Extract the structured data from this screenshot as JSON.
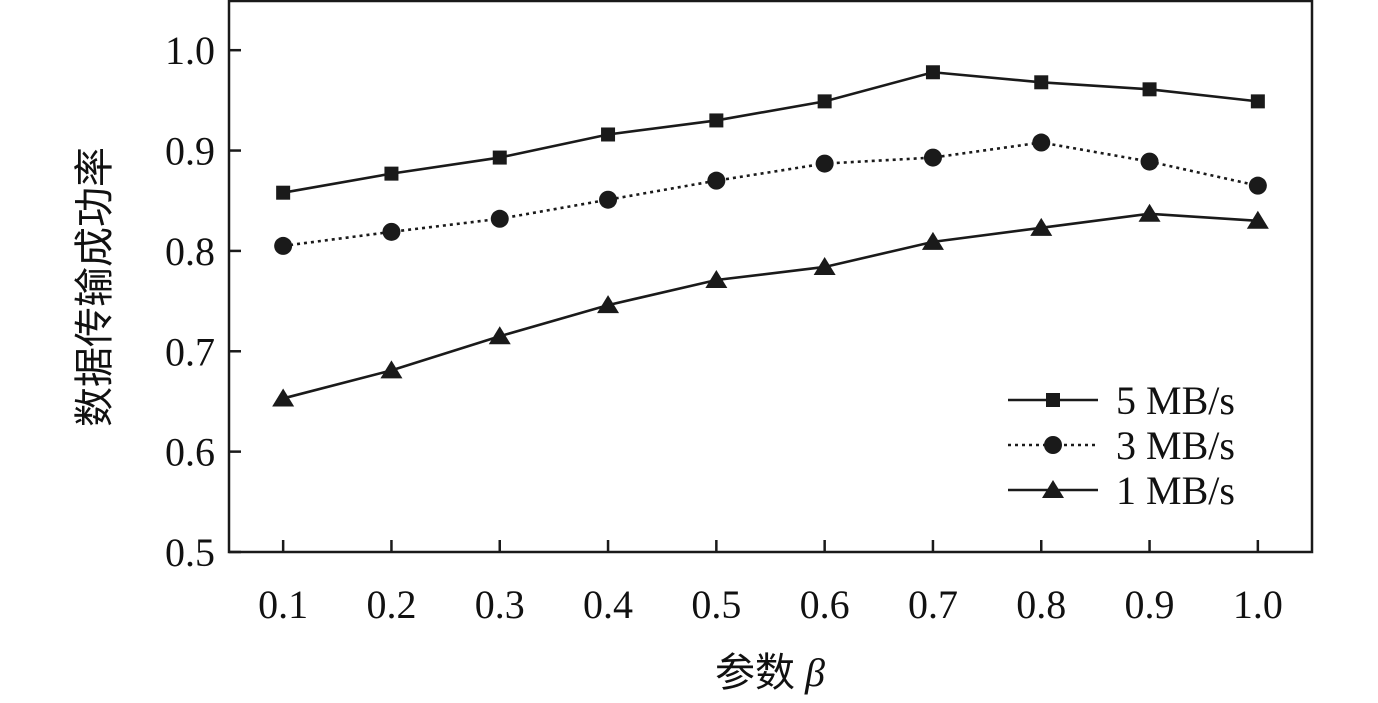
{
  "chart_data": {
    "type": "line",
    "xlabel": "参数",
    "xlabel_symbol": "β",
    "ylabel": "数据传输成功率",
    "x": [
      0.1,
      0.2,
      0.3,
      0.4,
      0.5,
      0.6,
      0.7,
      0.8,
      0.9,
      1.0
    ],
    "x_tick_labels": [
      "0.1",
      "0.2",
      "0.3",
      "0.4",
      "0.5",
      "0.6",
      "0.7",
      "0.8",
      "0.9",
      "1.0"
    ],
    "y_ticks": [
      0.5,
      0.6,
      0.7,
      0.8,
      0.9,
      1.0
    ],
    "y_tick_labels": [
      "0.5",
      "0.6",
      "0.7",
      "0.8",
      "0.9",
      "1.0"
    ],
    "xlim": [
      0.05,
      1.05
    ],
    "ylim": [
      0.5,
      1.05
    ],
    "grid": false,
    "legend_position": "bottom-right",
    "series": [
      {
        "name": "5 MB/s",
        "marker": "square",
        "line_style": "solid",
        "values": [
          0.858,
          0.877,
          0.893,
          0.916,
          0.93,
          0.949,
          0.978,
          0.968,
          0.961,
          0.949
        ]
      },
      {
        "name": "3 MB/s",
        "marker": "circle",
        "line_style": "dotted",
        "values": [
          0.805,
          0.819,
          0.832,
          0.851,
          0.87,
          0.887,
          0.893,
          0.908,
          0.889,
          0.865
        ]
      },
      {
        "name": "1 MB/s",
        "marker": "triangle",
        "line_style": "solid",
        "values": [
          0.653,
          0.681,
          0.715,
          0.746,
          0.771,
          0.784,
          0.809,
          0.823,
          0.837,
          0.83
        ]
      }
    ],
    "colors": {
      "line": "#1a1a1a",
      "axis": "#1a1a1a"
    }
  }
}
